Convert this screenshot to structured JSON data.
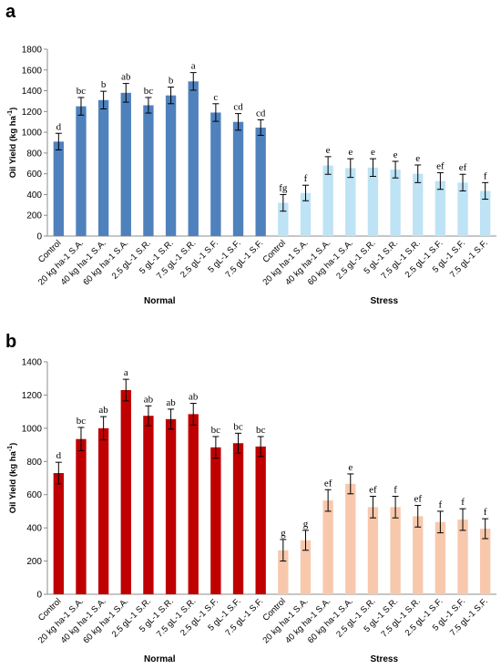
{
  "chart_data": [
    {
      "panel_label": "a",
      "type": "bar",
      "ylabel": "Oil Yield (kg ha",
      "ylabel_sup": "-1",
      "ylabel_close": ")",
      "ylim": [
        0,
        1800
      ],
      "yticks": [
        "0",
        "200",
        "400",
        "600",
        "800",
        "1000",
        "1200",
        "1400",
        "1600",
        "1800"
      ],
      "ytick_values": [
        0,
        200,
        400,
        600,
        800,
        1000,
        1200,
        1400,
        1600,
        1800
      ],
      "grid": false,
      "categories": [
        "Control",
        "20 kg ha-1 S.A.",
        "40 kg ha-1 S.A.",
        "60 kg ha-1 S.A.",
        "2.5 gL-1 S.R.",
        "5 gL-1 S.R.",
        "7.5 gL-1 S.R.",
        "2.5 gL-1 S.F.",
        "5 gL-1 S.F.",
        "7.5 gL-1 S.F."
      ],
      "groups": [
        {
          "name": "Normal",
          "color": "#4f81bd",
          "values": [
            910,
            1250,
            1310,
            1380,
            1260,
            1355,
            1490,
            1190,
            1100,
            1045
          ],
          "errors": [
            80,
            85,
            85,
            90,
            75,
            80,
            85,
            85,
            80,
            75
          ],
          "letters": [
            "d",
            "bc",
            "b",
            "ab",
            "bc",
            "b",
            "a",
            "c",
            "cd",
            "cd"
          ]
        },
        {
          "name": "Stress",
          "color": "#bde3f5",
          "values": [
            320,
            415,
            680,
            655,
            660,
            640,
            600,
            530,
            515,
            435
          ],
          "errors": [
            80,
            75,
            85,
            90,
            85,
            80,
            85,
            80,
            80,
            80
          ],
          "letters": [
            "fg",
            "f",
            "e",
            "e",
            "e",
            "e",
            "e",
            "ef",
            "ef",
            "f"
          ]
        }
      ]
    },
    {
      "panel_label": "b",
      "type": "bar",
      "ylabel": "Oil Yield (kg ha",
      "ylabel_sup": "-1",
      "ylabel_close": ")",
      "ylim": [
        0,
        1400
      ],
      "yticks": [
        "0",
        "200",
        "400",
        "600",
        "800",
        "1000",
        "1200",
        "1400"
      ],
      "ytick_values": [
        0,
        200,
        400,
        600,
        800,
        1000,
        1200,
        1400
      ],
      "grid": false,
      "categories": [
        "Control",
        "20 kg ha-1 S.A.",
        "40 kg ha-1 S.A.",
        "60 kg ha-1 S.A.",
        "2.5 gL-1 S.R.",
        "5 gL-1 S.R.",
        "7.5 gL-1 S.R.",
        "2.5 gL-1 S.F.",
        "5 gL-1 S.F.",
        "7.5 gL-1 S.F."
      ],
      "groups": [
        {
          "name": "Normal",
          "color": "#c00000",
          "values": [
            730,
            935,
            1000,
            1230,
            1075,
            1055,
            1085,
            885,
            910,
            890
          ],
          "errors": [
            65,
            70,
            70,
            65,
            60,
            60,
            65,
            65,
            60,
            60
          ],
          "letters": [
            "d",
            "bc",
            "ab",
            "a",
            "ab",
            "ab",
            "ab",
            "bc",
            "bc",
            "bc"
          ]
        },
        {
          "name": "Stress",
          "color": "#f8c8ad",
          "values": [
            265,
            325,
            565,
            665,
            525,
            525,
            470,
            435,
            450,
            395
          ],
          "errors": [
            65,
            60,
            65,
            60,
            65,
            65,
            65,
            65,
            65,
            60
          ],
          "letters": [
            "g",
            "g",
            "ef",
            "e",
            "ef",
            "f",
            "ef",
            "f",
            "f",
            "f"
          ]
        }
      ]
    }
  ]
}
